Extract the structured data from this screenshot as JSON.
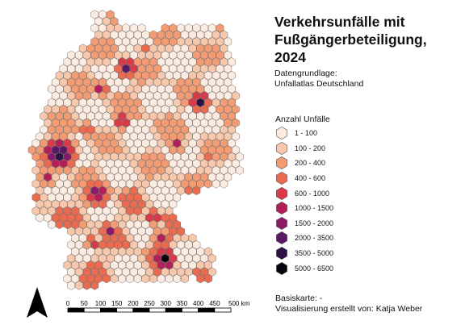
{
  "title_lines": [
    "Verkehrsunfälle mit",
    "Fußgängerbeteiligung,",
    "2024"
  ],
  "source": {
    "line1": "Datengrundlage:",
    "line2": "Unfallatlas Deutschland"
  },
  "legend": {
    "title": "Anzahl Unfälle",
    "classes": [
      {
        "label": "1 - 100",
        "color": "#fcebe0"
      },
      {
        "label": "100 - 200",
        "color": "#f8c8ac"
      },
      {
        "label": "200 - 400",
        "color": "#f39c74"
      },
      {
        "label": "400 - 600",
        "color": "#ea6b50"
      },
      {
        "label": "600 - 1000",
        "color": "#d83a4a"
      },
      {
        "label": "1000 - 1500",
        "color": "#b41f5a"
      },
      {
        "label": "1500 - 2000",
        "color": "#8a1a68"
      },
      {
        "label": "2000 - 3500",
        "color": "#5c1766"
      },
      {
        "label": "3500 - 5000",
        "color": "#2e1246"
      },
      {
        "label": "5000 - 6500",
        "color": "#07040d"
      }
    ]
  },
  "footer": {
    "basemap": "Basiskarte: -",
    "credit": "Visualisierung erstellt von: Katja Weber"
  },
  "scalebar": {
    "labels": [
      "0",
      "50",
      "100",
      "150",
      "200",
      "250",
      "300",
      "350",
      "400",
      "450",
      "500 km"
    ]
  },
  "north_arrow": {
    "icon": "north-arrow-icon"
  }
}
